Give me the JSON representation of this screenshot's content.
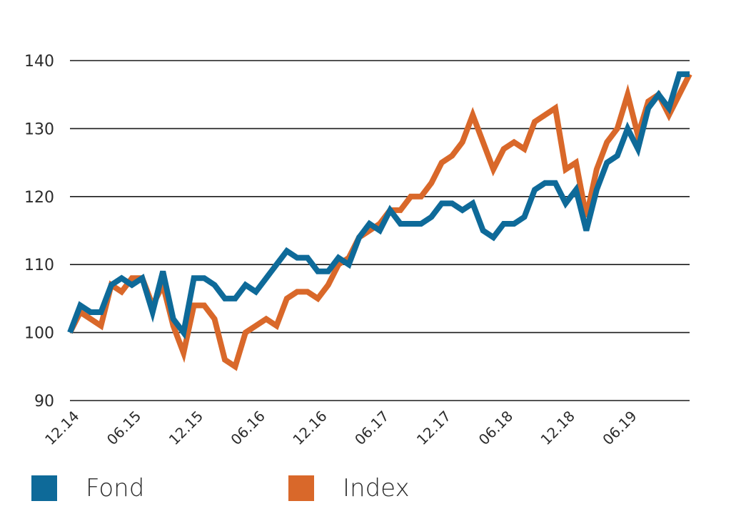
{
  "chart_data": {
    "type": "line",
    "title": "",
    "xlabel": "",
    "ylabel": "",
    "ylim": [
      90,
      140
    ],
    "yticks": [
      90,
      100,
      110,
      120,
      130,
      140
    ],
    "grid": "horizontal",
    "legend_position": "bottom",
    "x_tick_labels": [
      "12.14",
      "06.15",
      "12.15",
      "06.16",
      "12.16",
      "06.17",
      "12.17",
      "06.18",
      "12.18",
      "06.19"
    ],
    "x_tick_indices": [
      0,
      6,
      12,
      18,
      24,
      30,
      36,
      42,
      48,
      54
    ],
    "series": [
      {
        "name": "Fond",
        "color": "#0e6a99",
        "values": [
          100,
          104,
          103,
          103,
          107,
          108,
          107,
          108,
          103,
          109,
          102,
          100,
          108,
          108,
          107,
          105,
          105,
          107,
          106,
          108,
          110,
          112,
          111,
          111,
          109,
          109,
          111,
          110,
          114,
          116,
          115,
          118,
          116,
          116,
          116,
          117,
          119,
          119,
          118,
          119,
          115,
          114,
          116,
          116,
          117,
          121,
          122,
          122,
          119,
          121,
          115,
          121,
          125,
          126,
          130,
          127,
          133,
          135,
          133,
          138,
          138
        ]
      },
      {
        "name": "Index",
        "color": "#d9682a",
        "values": [
          100,
          103,
          102,
          101,
          107,
          106,
          108,
          108,
          104,
          107,
          101,
          97,
          104,
          104,
          102,
          96,
          95,
          100,
          101,
          102,
          101,
          105,
          106,
          106,
          105,
          107,
          110,
          111,
          114,
          115,
          116,
          118,
          118,
          120,
          120,
          122,
          125,
          126,
          128,
          132,
          128,
          124,
          127,
          128,
          127,
          131,
          132,
          133,
          124,
          125,
          117,
          124,
          128,
          130,
          135,
          129,
          134,
          135,
          132,
          135,
          138
        ]
      }
    ]
  },
  "legend": {
    "items": [
      {
        "label": "Fond",
        "color": "#0e6a99"
      },
      {
        "label": "Index",
        "color": "#d9682a"
      }
    ]
  }
}
